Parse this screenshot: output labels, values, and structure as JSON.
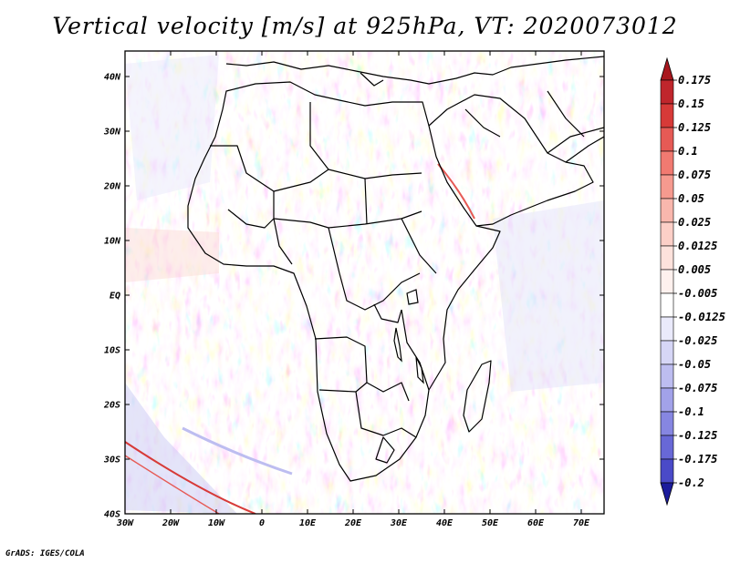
{
  "title": "Vertical velocity [m/s] at 925hPa, VT: 2020073012",
  "credit": "GrADS: IGES/COLA",
  "map": {
    "lat_ticks": [
      "40N",
      "30N",
      "20N",
      "10N",
      "EQ",
      "10S",
      "20S",
      "30S",
      "40S"
    ],
    "lon_ticks": [
      "30W",
      "20W",
      "10W",
      "0",
      "10E",
      "20E",
      "30E",
      "40E",
      "50E",
      "60E",
      "70E"
    ],
    "region": "Africa",
    "variable": "vertical velocity",
    "level": "925hPa",
    "valid_time": "2020073012"
  },
  "colorbar": {
    "levels": [
      {
        "label": "0.175",
        "color": "#c0262c"
      },
      {
        "label": "0.15",
        "color": "#d73a38"
      },
      {
        "label": "0.125",
        "color": "#e65a55"
      },
      {
        "label": "0.1",
        "color": "#f17a71"
      },
      {
        "label": "0.075",
        "color": "#f69a8f"
      },
      {
        "label": "0.05",
        "color": "#f9b7ad"
      },
      {
        "label": "0.025",
        "color": "#fccfc7"
      },
      {
        "label": "0.0125",
        "color": "#fde2dc"
      },
      {
        "label": "0.005",
        "color": "#fef1ee"
      },
      {
        "label": "-0.005",
        "color": "#ffffff"
      },
      {
        "label": "-0.0125",
        "color": "#eaeafb"
      },
      {
        "label": "-0.025",
        "color": "#d6d6f6"
      },
      {
        "label": "-0.05",
        "color": "#bdbdf0"
      },
      {
        "label": "-0.075",
        "color": "#a2a2e9"
      },
      {
        "label": "-0.1",
        "color": "#8686e1"
      },
      {
        "label": "-0.125",
        "color": "#6868d6"
      },
      {
        "label": "-0.175",
        "color": "#4a4ac8"
      },
      {
        "label": "-0.2",
        "color": "#3030b4"
      }
    ],
    "top_color": "#a8171e",
    "bottom_color": "#1c1c9c"
  }
}
